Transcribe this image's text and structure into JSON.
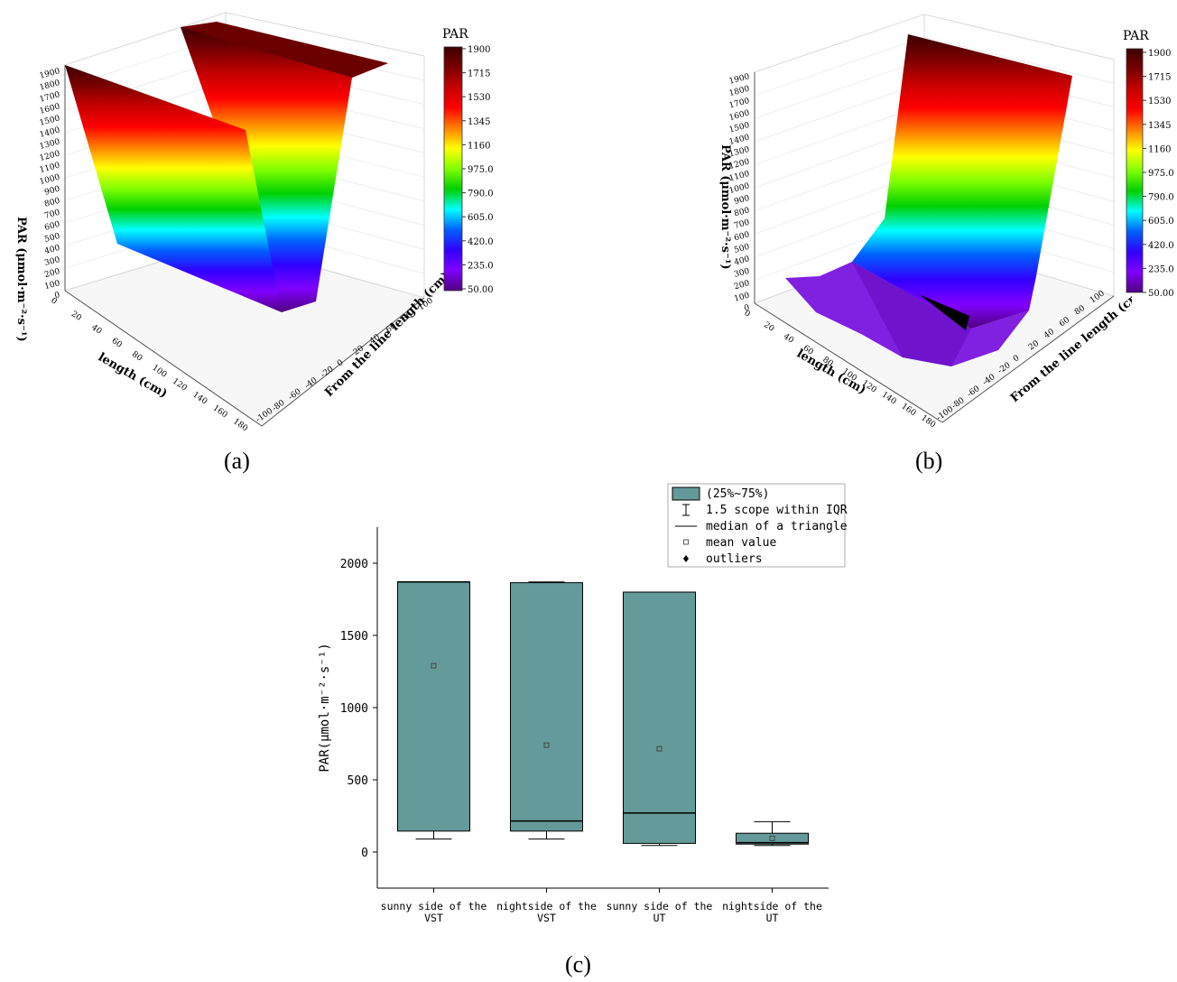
{
  "panel_labels": [
    "(a)",
    "(b)",
    "(c)"
  ],
  "colorbar": {
    "title": "PAR",
    "ticks": [
      "1900",
      "1715",
      "1530",
      "1345",
      "1160",
      "975.0",
      "790.0",
      "605.0",
      "420.0",
      "235.0",
      "50.00"
    ],
    "colors": [
      "#3c0000",
      "#7a0000",
      "#c80000",
      "#ff0000",
      "#ff8000",
      "#ffff00",
      "#80ff00",
      "#00d000",
      "#00ffff",
      "#0060ff",
      "#3000ff",
      "#8000ff",
      "#500080"
    ]
  },
  "surface_a": {
    "z_label": "PAR (μmol·m⁻²·s⁻¹)",
    "z_ticks": [
      "0",
      "100",
      "200",
      "300",
      "400",
      "500",
      "600",
      "700",
      "800",
      "900",
      "1000",
      "1100",
      "1200",
      "1300",
      "1400",
      "1500",
      "1600",
      "1700",
      "1800",
      "1900"
    ],
    "x_label": "length (cm)",
    "x_ticks": [
      "0",
      "20",
      "40",
      "60",
      "80",
      "100",
      "120",
      "140",
      "160",
      "180"
    ],
    "y_label": "From the line length (cm)",
    "y_ticks": [
      "-100",
      "-80",
      "-60",
      "-40",
      "-20",
      "0",
      "20",
      "40",
      "60",
      "80",
      "100"
    ]
  },
  "surface_b": {
    "z_label": "PAR (μmol·m⁻²·s⁻¹)",
    "z_ticks": [
      "0",
      "100",
      "200",
      "300",
      "400",
      "500",
      "600",
      "700",
      "800",
      "900",
      "1000",
      "1100",
      "1200",
      "1300",
      "1400",
      "1500",
      "1600",
      "1700",
      "1800",
      "1900"
    ],
    "x_label": "length (cm)",
    "x_ticks": [
      "0",
      "20",
      "40",
      "60",
      "80",
      "100",
      "120",
      "140",
      "160",
      "180"
    ],
    "y_label": "From the line length (cm)",
    "y_ticks": [
      "-100",
      "-80",
      "-60",
      "-40",
      "-20",
      "0",
      "20",
      "40",
      "60",
      "80",
      "100"
    ]
  },
  "chart_data": {
    "type": "box",
    "ylabel": "PAR(μmol·m⁻²·s⁻¹)",
    "ylim": [
      -250,
      2250
    ],
    "y_ticks": [
      0,
      500,
      1000,
      1500,
      2000
    ],
    "categories": [
      [
        "sunny side of the",
        "VST"
      ],
      [
        "nightside of the",
        "VST"
      ],
      [
        "sunny side of the",
        "UT"
      ],
      [
        "nightside of the",
        "UT"
      ]
    ],
    "boxes": [
      {
        "whisker_low": 90,
        "q1": 145,
        "median": 1870,
        "q3": 1870,
        "whisker_high": 1870,
        "mean": 1290
      },
      {
        "whisker_low": 90,
        "q1": 145,
        "median": 215,
        "q3": 1865,
        "whisker_high": 1870,
        "mean": 740
      },
      {
        "whisker_low": 45,
        "q1": 60,
        "median": 270,
        "q3": 1800,
        "whisker_high": 1800,
        "mean": 715
      },
      {
        "whisker_low": 45,
        "q1": 55,
        "median": 65,
        "q3": 130,
        "whisker_high": 210,
        "mean": 95
      }
    ],
    "box_color": "#649a9a",
    "legend": {
      "placement": "top-right",
      "items": [
        "(25%~75%)",
        "1.5 scope within IQR",
        "median of a triangle",
        "mean value",
        "outliers"
      ]
    }
  }
}
